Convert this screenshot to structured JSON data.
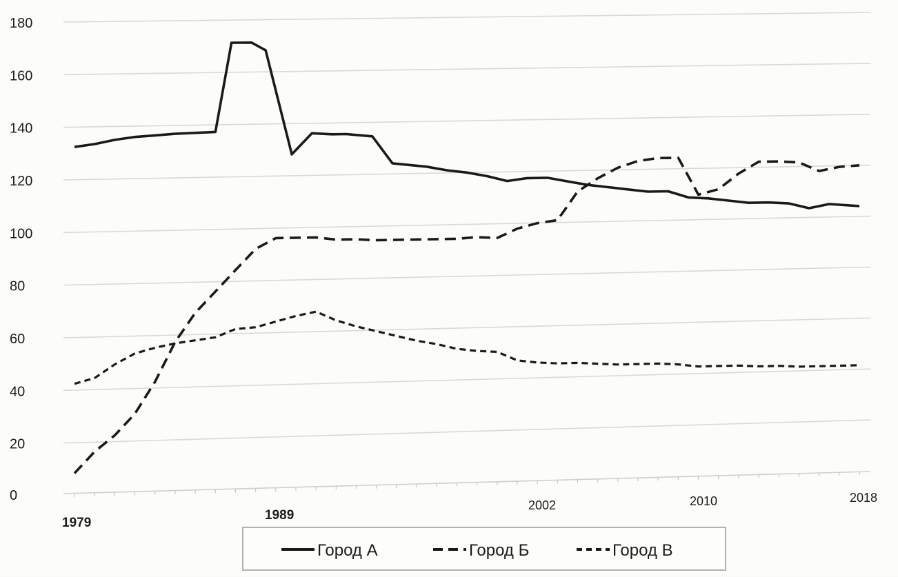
{
  "chart_data": {
    "type": "line",
    "title": "",
    "xlabel": "",
    "ylabel": "",
    "xlim": [
      1979,
      2018
    ],
    "ylim": [
      0,
      180
    ],
    "yticks": [
      "0",
      "20",
      "40",
      "60",
      "80",
      "100",
      "120",
      "140",
      "160",
      "180"
    ],
    "xtick_labels": [
      "1979",
      "1989",
      "2002",
      "2010",
      "2018"
    ],
    "grid": true,
    "legend_position": "bottom",
    "series": [
      {
        "name": "Город А",
        "style": "solid",
        "color": "#1a1a1a",
        "points": [
          [
            1979,
            132
          ],
          [
            1980,
            133
          ],
          [
            1981,
            134.5
          ],
          [
            1982,
            135.5
          ],
          [
            1983,
            136
          ],
          [
            1984,
            136.5
          ],
          [
            1986,
            137
          ],
          [
            1986.8,
            171
          ],
          [
            1987.8,
            171
          ],
          [
            1988.5,
            168
          ],
          [
            1989.8,
            128
          ],
          [
            1990.8,
            136
          ],
          [
            1991.8,
            135.5
          ],
          [
            1992.5,
            135.5
          ],
          [
            1993.8,
            134.5
          ],
          [
            1994.8,
            124
          ],
          [
            1996.5,
            122.5
          ],
          [
            1997.5,
            121
          ],
          [
            1998.5,
            120
          ],
          [
            1999.5,
            118.5
          ],
          [
            2000.5,
            116.5
          ],
          [
            2001.5,
            117.5
          ],
          [
            2002.5,
            117.5
          ],
          [
            2003.5,
            116
          ],
          [
            2004.5,
            114.5
          ],
          [
            2005.5,
            113.5
          ],
          [
            2006.5,
            112.5
          ],
          [
            2007.5,
            111.5
          ],
          [
            2008.5,
            111.5
          ],
          [
            2009.5,
            109
          ],
          [
            2010.5,
            108.5
          ],
          [
            2011.5,
            107.5
          ],
          [
            2012.5,
            106.5
          ],
          [
            2013.5,
            106.5
          ],
          [
            2014.5,
            106
          ],
          [
            2015.5,
            104
          ],
          [
            2016.5,
            105.5
          ],
          [
            2018,
            104.5
          ]
        ]
      },
      {
        "name": "Город Б",
        "style": "dashed",
        "color": "#1a1a1a",
        "points": [
          [
            1979,
            8
          ],
          [
            1980,
            16
          ],
          [
            1981,
            22
          ],
          [
            1982,
            30
          ],
          [
            1983,
            42
          ],
          [
            1984,
            57
          ],
          [
            1985,
            68
          ],
          [
            1986,
            76
          ],
          [
            1987,
            84
          ],
          [
            1988,
            92
          ],
          [
            1989,
            96
          ],
          [
            1990,
            96
          ],
          [
            1991,
            96
          ],
          [
            1992,
            95
          ],
          [
            1993,
            95
          ],
          [
            1994,
            94.5
          ],
          [
            1995,
            94.5
          ],
          [
            1996,
            94.5
          ],
          [
            1997,
            94.5
          ],
          [
            1998,
            94.5
          ],
          [
            1999,
            95
          ],
          [
            2000,
            94.5
          ],
          [
            2001,
            98
          ],
          [
            2002,
            100
          ],
          [
            2003,
            101
          ],
          [
            2004,
            112
          ],
          [
            2005,
            117
          ],
          [
            2006,
            121
          ],
          [
            2007,
            123.5
          ],
          [
            2008,
            124.5
          ],
          [
            2009,
            124.5
          ],
          [
            2010,
            110
          ],
          [
            2011,
            112
          ],
          [
            2012,
            118
          ],
          [
            2013,
            122.5
          ],
          [
            2014,
            122.5
          ],
          [
            2015,
            122
          ],
          [
            2016,
            118.5
          ],
          [
            2017,
            120
          ],
          [
            2018,
            120.5
          ]
        ]
      },
      {
        "name": "Город В",
        "style": "short-dashed",
        "color": "#1a1a1a",
        "points": [
          [
            1979,
            42
          ],
          [
            1980,
            44
          ],
          [
            1981,
            49
          ],
          [
            1982,
            53
          ],
          [
            1983,
            55
          ],
          [
            1984,
            56.5
          ],
          [
            1985,
            57.5
          ],
          [
            1986,
            58.5
          ],
          [
            1987,
            61.5
          ],
          [
            1988,
            62
          ],
          [
            1989,
            64
          ],
          [
            1990,
            66
          ],
          [
            1991,
            67.5
          ],
          [
            1992,
            64
          ],
          [
            1993,
            61.5
          ],
          [
            1994,
            59.5
          ],
          [
            1995,
            57.5
          ],
          [
            1996,
            55.5
          ],
          [
            1997,
            54
          ],
          [
            1998,
            52
          ],
          [
            1999,
            51
          ],
          [
            2000,
            50.5
          ],
          [
            2001,
            47
          ],
          [
            2002,
            46
          ],
          [
            2003,
            45.5
          ],
          [
            2004,
            45.5
          ],
          [
            2005,
            45
          ],
          [
            2006,
            44.5
          ],
          [
            2007,
            44.5
          ],
          [
            2008,
            44.5
          ],
          [
            2009,
            44
          ],
          [
            2010,
            43
          ],
          [
            2011,
            43
          ],
          [
            2012,
            43
          ],
          [
            2013,
            42.5
          ],
          [
            2014,
            42.5
          ],
          [
            2015,
            42
          ],
          [
            2016,
            42
          ],
          [
            2017,
            42
          ],
          [
            2018,
            42
          ]
        ]
      }
    ]
  }
}
